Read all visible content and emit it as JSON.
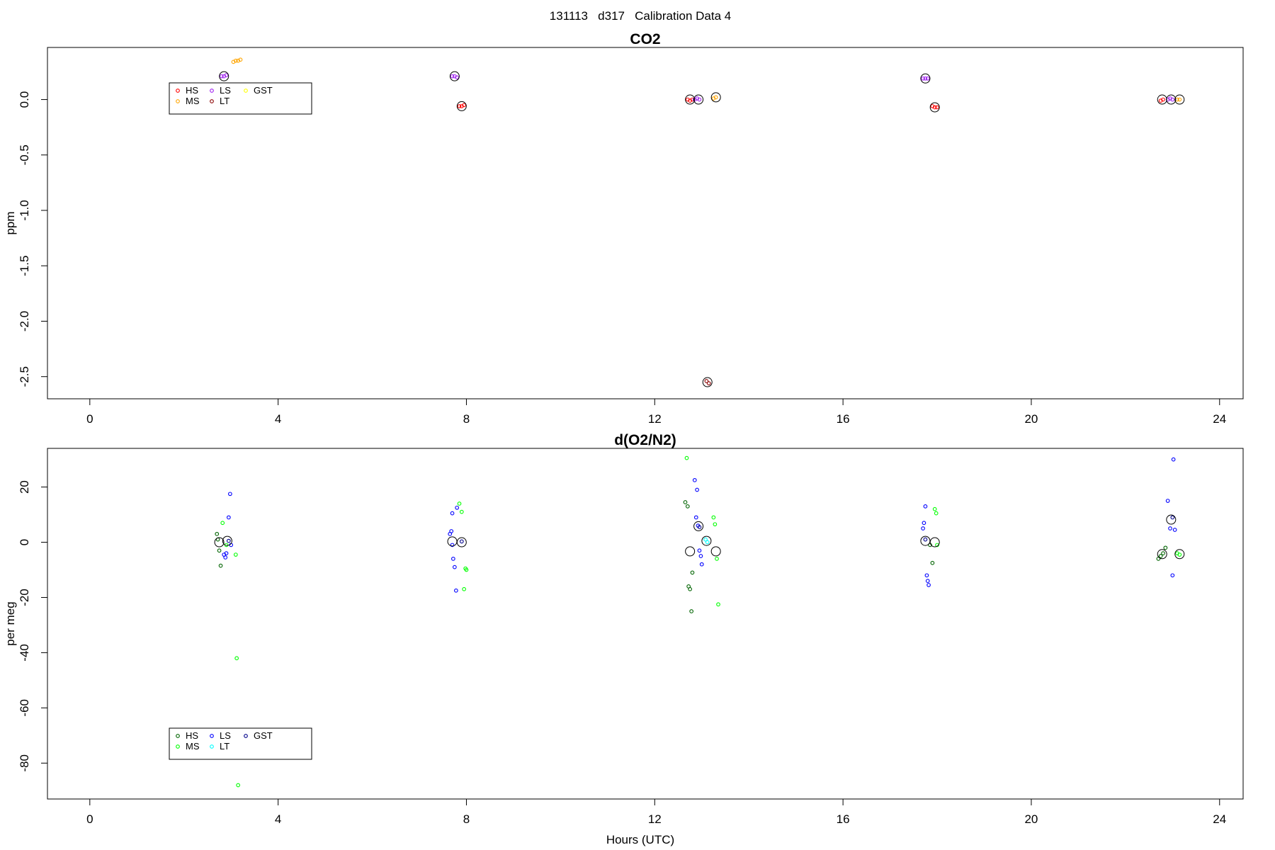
{
  "page_title": "131113   d317   Calibration Data 4",
  "xlabel": "Hours (UTC)",
  "colors": {
    "HS_co2": "#ff0000",
    "MS_co2": "#ffa500",
    "LS_co2": "#a020f0",
    "LT_co2": "#8b0000",
    "GST_co2": "#ffff00",
    "HS_o2": "#006400",
    "MS_o2": "#00ff00",
    "LS_o2": "#0000ff",
    "LT_o2": "#00ffff",
    "GST_o2": "#00008b",
    "mean": "#000000"
  },
  "chart_data": [
    {
      "type": "scatter",
      "title": "CO2",
      "ylabel": "ppm",
      "xlim": [
        -0.9,
        24.5
      ],
      "ylim": [
        -2.7,
        0.47
      ],
      "xticks": [
        0,
        4,
        8,
        12,
        16,
        20,
        24
      ],
      "yticks": [
        0.0,
        -0.5,
        -1.0,
        -1.5,
        -2.0,
        -2.5
      ],
      "ytick_labels": [
        "0.0",
        "-0.5",
        "-1.0",
        "-1.5",
        "-2.0",
        "-2.5"
      ],
      "legend": {
        "position": "top-left",
        "entries": [
          "HS",
          "MS",
          "LS",
          "LT",
          "GST"
        ]
      },
      "series": [
        {
          "name": "HS",
          "color_key": "HS_co2",
          "points": [
            [
              12.7,
              0.0
            ],
            [
              12.75,
              -0.01
            ],
            [
              12.8,
              0.0
            ],
            [
              17.9,
              -0.06
            ],
            [
              17.95,
              -0.07
            ],
            [
              18.0,
              -0.07
            ],
            [
              7.85,
              -0.06
            ],
            [
              7.9,
              -0.06
            ],
            [
              7.95,
              -0.05
            ],
            [
              22.75,
              -0.01
            ],
            [
              22.8,
              0.0
            ]
          ]
        },
        {
          "name": "MS",
          "color_key": "MS_co2",
          "points": [
            [
              3.05,
              0.34
            ],
            [
              3.1,
              0.35
            ],
            [
              3.15,
              0.35
            ],
            [
              3.2,
              0.36
            ],
            [
              13.25,
              0.01
            ],
            [
              13.3,
              0.02
            ],
            [
              23.1,
              0.0
            ],
            [
              23.15,
              0.0
            ]
          ]
        },
        {
          "name": "LS",
          "color_key": "LS_co2",
          "points": [
            [
              2.8,
              0.21
            ],
            [
              2.85,
              0.21
            ],
            [
              2.9,
              0.22
            ],
            [
              7.7,
              0.21
            ],
            [
              7.75,
              0.21
            ],
            [
              7.8,
              0.2
            ],
            [
              12.85,
              0.0
            ],
            [
              12.9,
              0.01
            ],
            [
              12.95,
              0.0
            ],
            [
              17.7,
              0.19
            ],
            [
              17.75,
              0.19
            ],
            [
              17.8,
              0.19
            ],
            [
              22.9,
              0.0
            ],
            [
              22.95,
              0.01
            ],
            [
              23.0,
              0.0
            ]
          ]
        },
        {
          "name": "LT",
          "color_key": "LT_co2",
          "points": [
            [
              13.1,
              -2.54
            ],
            [
              13.15,
              -2.56
            ]
          ]
        },
        {
          "name": "GST",
          "color_key": "GST_co2",
          "points": []
        }
      ],
      "means": [
        [
          2.85,
          0.21
        ],
        [
          7.75,
          0.21
        ],
        [
          7.9,
          -0.06
        ],
        [
          12.75,
          0.0
        ],
        [
          12.93,
          0.0
        ],
        [
          13.12,
          -2.55
        ],
        [
          13.3,
          0.02
        ],
        [
          17.75,
          0.19
        ],
        [
          17.95,
          -0.07
        ],
        [
          22.78,
          0.0
        ],
        [
          22.97,
          0.0
        ],
        [
          23.15,
          0.0
        ]
      ]
    },
    {
      "type": "scatter",
      "title": "d(O2/N2)",
      "ylabel": "per meg",
      "xlim": [
        -0.9,
        24.5
      ],
      "ylim": [
        -93,
        34
      ],
      "xticks": [
        0,
        4,
        8,
        12,
        16,
        20,
        24
      ],
      "yticks": [
        20,
        0,
        -20,
        -40,
        -60,
        -80
      ],
      "ytick_labels": [
        "20",
        "0",
        "-20",
        "-40",
        "-60",
        "-80"
      ],
      "legend": {
        "position": "bottom-left",
        "entries": [
          "HS",
          "MS",
          "LS",
          "LT",
          "GST"
        ]
      },
      "series": [
        {
          "name": "HS",
          "color_key": "HS_o2",
          "points": [
            [
              2.7,
              3
            ],
            [
              2.72,
              1
            ],
            [
              2.75,
              -3
            ],
            [
              2.78,
              -8.5
            ],
            [
              12.65,
              14.5
            ],
            [
              12.7,
              13
            ],
            [
              12.72,
              -16
            ],
            [
              12.75,
              -17
            ],
            [
              12.78,
              -25
            ],
            [
              12.8,
              -11
            ],
            [
              17.85,
              -1
            ],
            [
              17.9,
              -7.5
            ],
            [
              22.7,
              -6
            ],
            [
              22.75,
              -5
            ],
            [
              22.8,
              -4
            ],
            [
              22.85,
              -2
            ]
          ]
        },
        {
          "name": "MS",
          "color_key": "MS_o2",
          "points": [
            [
              2.82,
              7
            ],
            [
              2.9,
              -1
            ],
            [
              3.1,
              -4.5
            ],
            [
              3.12,
              -42
            ],
            [
              3.15,
              -88
            ],
            [
              7.85,
              14
            ],
            [
              7.9,
              11
            ],
            [
              7.95,
              -17
            ],
            [
              7.98,
              -9.5
            ],
            [
              8.0,
              -10
            ],
            [
              12.68,
              30.5
            ],
            [
              13.25,
              9
            ],
            [
              13.28,
              6.5
            ],
            [
              13.32,
              -6
            ],
            [
              13.35,
              -22.5
            ],
            [
              17.95,
              12
            ],
            [
              17.98,
              10.5
            ],
            [
              18.0,
              -1
            ],
            [
              23.1,
              -4
            ],
            [
              23.15,
              -4.5
            ]
          ]
        },
        {
          "name": "LS",
          "color_key": "LS_o2",
          "points": [
            [
              2.85,
              -4.5
            ],
            [
              2.88,
              -5.5
            ],
            [
              2.9,
              -4
            ],
            [
              2.95,
              9
            ],
            [
              2.98,
              17.5
            ],
            [
              3.0,
              -1
            ],
            [
              7.65,
              3
            ],
            [
              7.68,
              4
            ],
            [
              7.7,
              -1
            ],
            [
              7.72,
              -6
            ],
            [
              7.75,
              -9
            ],
            [
              7.78,
              -17.5
            ],
            [
              7.8,
              12.5
            ],
            [
              7.7,
              10.5
            ],
            [
              12.85,
              22.5
            ],
            [
              12.88,
              9
            ],
            [
              12.9,
              19
            ],
            [
              12.92,
              6
            ],
            [
              12.95,
              -3
            ],
            [
              12.98,
              -5
            ],
            [
              13.0,
              -8
            ],
            [
              17.7,
              5
            ],
            [
              17.72,
              7
            ],
            [
              17.75,
              13
            ],
            [
              17.78,
              -12
            ],
            [
              17.8,
              -14
            ],
            [
              17.82,
              -15.5
            ],
            [
              22.9,
              15
            ],
            [
              22.95,
              5
            ],
            [
              23.0,
              -12
            ],
            [
              23.02,
              30
            ],
            [
              23.05,
              4.5
            ]
          ]
        },
        {
          "name": "LT",
          "color_key": "LT_o2",
          "points": [
            [
              13.08,
              1
            ],
            [
              13.12,
              0
            ]
          ]
        },
        {
          "name": "GST",
          "color_key": "GST_o2",
          "points": [
            [
              2.95,
              0.5
            ],
            [
              7.9,
              0.3
            ],
            [
              12.95,
              5.5
            ],
            [
              17.75,
              1
            ],
            [
              23.0,
              9
            ]
          ]
        }
      ],
      "means": [
        [
          2.75,
          0.0
        ],
        [
          2.92,
          0.5
        ],
        [
          7.7,
          0.3
        ],
        [
          7.9,
          0.0
        ],
        [
          12.75,
          -3.3
        ],
        [
          12.93,
          5.8
        ],
        [
          13.1,
          0.5
        ],
        [
          13.3,
          -3.3
        ],
        [
          17.75,
          0.5
        ],
        [
          17.95,
          0.0
        ],
        [
          22.78,
          -4.3
        ],
        [
          22.97,
          8.2
        ],
        [
          23.15,
          -4.3
        ]
      ]
    }
  ]
}
